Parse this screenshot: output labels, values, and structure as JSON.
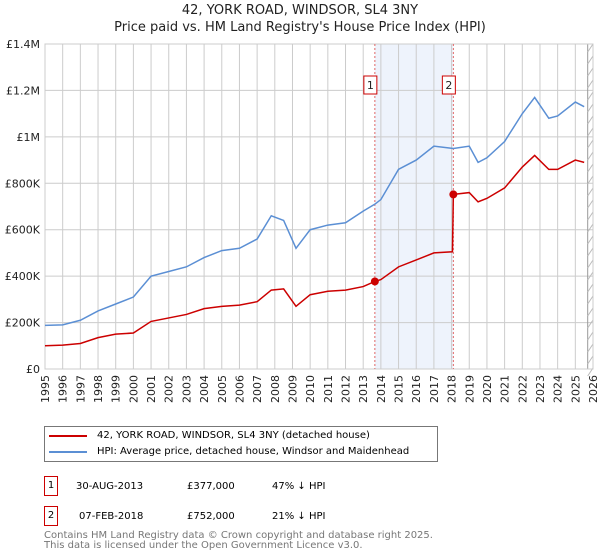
{
  "chart_data": {
    "type": "line",
    "title": "42, YORK ROAD, WINDSOR, SL4 3NY",
    "subtitle": "Price paid vs. HM Land Registry's House Price Index (HPI)",
    "xlim": [
      1995,
      2026
    ],
    "ylim": [
      0,
      1400000
    ],
    "yticks": [
      {
        "v": 0,
        "label": "£0"
      },
      {
        "v": 200000,
        "label": "£200K"
      },
      {
        "v": 400000,
        "label": "£400K"
      },
      {
        "v": 600000,
        "label": "£600K"
      },
      {
        "v": 800000,
        "label": "£800K"
      },
      {
        "v": 1000000,
        "label": "£1M"
      },
      {
        "v": 1200000,
        "label": "£1.2M"
      },
      {
        "v": 1400000,
        "label": "£1.4M"
      }
    ],
    "xticks": [
      "1995",
      "1996",
      "1997",
      "1998",
      "1999",
      "2000",
      "2001",
      "2002",
      "2003",
      "2004",
      "2005",
      "2006",
      "2007",
      "2008",
      "2009",
      "2010",
      "2011",
      "2012",
      "2013",
      "2014",
      "2015",
      "2016",
      "2017",
      "2018",
      "2019",
      "2020",
      "2021",
      "2022",
      "2023",
      "2024",
      "2025",
      "2026"
    ],
    "grid": true,
    "shaded_range": [
      2013.66,
      2018.1
    ],
    "hatched_from": 2025.7,
    "series": [
      {
        "name": "42, YORK ROAD, WINDSOR, SL4 3NY (detached house)",
        "color": "#cc0000",
        "x": [
          1995,
          1996,
          1997,
          1998,
          1999,
          2000,
          2001,
          2002,
          2003,
          2004,
          2005,
          2006,
          2007,
          2007.8,
          2008.5,
          2009.2,
          2010,
          2011,
          2012,
          2013,
          2013.66,
          2014,
          2015,
          2016,
          2017,
          2018.05,
          2018.1,
          2019,
          2019.5,
          2020,
          2021,
          2022,
          2022.7,
          2023.5,
          2024,
          2025,
          2025.5
        ],
        "y": [
          100000,
          103000,
          110000,
          135000,
          150000,
          155000,
          205000,
          220000,
          235000,
          260000,
          270000,
          275000,
          290000,
          340000,
          345000,
          270000,
          320000,
          335000,
          340000,
          355000,
          377000,
          385000,
          440000,
          470000,
          500000,
          505000,
          752000,
          760000,
          720000,
          735000,
          780000,
          870000,
          920000,
          860000,
          860000,
          900000,
          890000
        ]
      },
      {
        "name": "HPI: Average price, detached house, Windsor and Maidenhead",
        "color": "#5b8fd4",
        "x": [
          1995,
          1996,
          1997,
          1998,
          1999,
          2000,
          2001,
          2002,
          2003,
          2004,
          2005,
          2006,
          2007,
          2007.8,
          2008.5,
          2009.2,
          2010,
          2011,
          2012,
          2013,
          2013.66,
          2014,
          2015,
          2016,
          2017,
          2018.1,
          2019,
          2019.5,
          2020,
          2021,
          2022,
          2022.7,
          2023.5,
          2024,
          2025,
          2025.5
        ],
        "y": [
          188000,
          190000,
          210000,
          250000,
          280000,
          310000,
          400000,
          420000,
          440000,
          480000,
          510000,
          520000,
          560000,
          660000,
          640000,
          520000,
          600000,
          620000,
          630000,
          680000,
          710000,
          730000,
          860000,
          900000,
          960000,
          950000,
          960000,
          890000,
          910000,
          980000,
          1100000,
          1170000,
          1080000,
          1090000,
          1150000,
          1130000
        ]
      }
    ],
    "sales": [
      {
        "id": "1",
        "x": 2013.66,
        "y": 377000
      },
      {
        "id": "2",
        "x": 2018.1,
        "y": 752000
      }
    ]
  },
  "table": [
    {
      "id": "1",
      "date": "30-AUG-2013",
      "price": "£377,000",
      "hpi": "47% ↓ HPI"
    },
    {
      "id": "2",
      "date": "07-FEB-2018",
      "price": "£752,000",
      "hpi": "21% ↓ HPI"
    }
  ],
  "footer": {
    "line1": "Contains HM Land Registry data © Crown copyright and database right 2025.",
    "line2": "This data is licensed under the Open Government Licence v3.0."
  }
}
